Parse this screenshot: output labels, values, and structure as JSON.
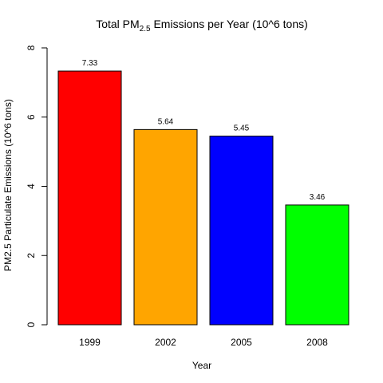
{
  "chart_data": {
    "type": "bar",
    "title": {
      "prefix": "Total PM",
      "subscript": "2.5",
      "suffix": " Emissions per Year (10^6 tons)"
    },
    "xlabel": "Year",
    "ylabel": "PM2.5 Particulate Emissions (10^6 tons)",
    "categories": [
      "1999",
      "2002",
      "2005",
      "2008"
    ],
    "values": [
      7.33,
      5.64,
      5.45,
      3.46
    ],
    "data_labels": [
      "7.33",
      "5.64",
      "5.45",
      "3.46"
    ],
    "colors": [
      "#ff0000",
      "#ffa500",
      "#0000ff",
      "#00ff00"
    ],
    "ylim": [
      0,
      8
    ],
    "yticks": [
      0,
      2,
      4,
      6,
      8
    ],
    "ytick_labels": [
      "0",
      "2",
      "4",
      "6",
      "8"
    ],
    "grid": false,
    "legend": "none"
  }
}
